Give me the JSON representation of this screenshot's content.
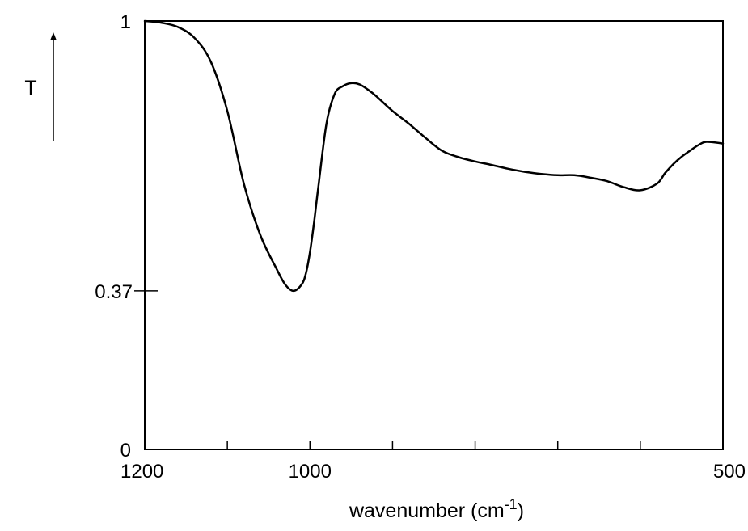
{
  "chart_data": {
    "type": "line",
    "ylabel": "T",
    "xlabel": "wavenumber (cm",
    "xlabel_sup": "-1",
    "xlabel_close": ")",
    "xlim": [
      1200,
      500
    ],
    "ylim": [
      0,
      1
    ],
    "xticks": [
      1200,
      1100,
      1000,
      900,
      800,
      700,
      600,
      500
    ],
    "xtick_labels": [
      {
        "value": 1200,
        "label": "1200"
      },
      {
        "value": 1000,
        "label": "1000"
      },
      {
        "value": 500,
        "label": "500"
      }
    ],
    "ytick_labels": [
      {
        "value": 1,
        "label": "1",
        "tick": false
      },
      {
        "value": 0.37,
        "label": "0.37",
        "tick": true
      },
      {
        "value": 0,
        "label": "0",
        "tick": false
      }
    ],
    "grid": false,
    "series": [
      {
        "x": [
          1200,
          1180,
          1160,
          1140,
          1120,
          1100,
          1080,
          1060,
          1040,
          1030,
          1020,
          1010,
          1005,
          1000,
          995,
          990,
          980,
          970,
          960,
          950,
          940,
          930,
          920,
          900,
          880,
          860,
          840,
          820,
          800,
          780,
          760,
          740,
          720,
          700,
          680,
          660,
          640,
          620,
          600,
          580,
          570,
          560,
          550,
          540,
          530,
          520,
          500
        ],
        "y": [
          1.0,
          0.996,
          0.986,
          0.961,
          0.905,
          0.79,
          0.62,
          0.5,
          0.42,
          0.385,
          0.37,
          0.385,
          0.41,
          0.46,
          0.53,
          0.61,
          0.76,
          0.83,
          0.848,
          0.855,
          0.852,
          0.84,
          0.825,
          0.79,
          0.76,
          0.727,
          0.697,
          0.682,
          0.672,
          0.664,
          0.655,
          0.648,
          0.643,
          0.64,
          0.64,
          0.634,
          0.626,
          0.612,
          0.605,
          0.62,
          0.645,
          0.666,
          0.683,
          0.697,
          0.71,
          0.718,
          0.714
        ]
      }
    ]
  }
}
